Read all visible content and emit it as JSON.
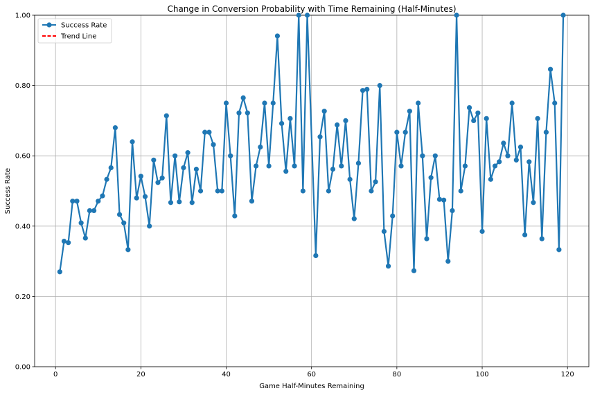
{
  "chart_data": {
    "type": "line",
    "title": "Change in Conversion Probability with Time Remaining (Half-Minutes)",
    "xlabel": "Game Half-Minutes Remaining",
    "ylabel": "Success Rate",
    "xlim": [
      -4.9,
      125
    ],
    "ylim": [
      0,
      1
    ],
    "xticks": [
      0,
      20,
      40,
      60,
      80,
      100,
      120
    ],
    "xtick_labels": [
      "0",
      "20",
      "40",
      "60",
      "80",
      "100",
      "120"
    ],
    "yticks": [
      0,
      0.2,
      0.4,
      0.6,
      0.8,
      1.0
    ],
    "ytick_labels": [
      "0.00",
      "0.20",
      "0.40",
      "0.60",
      "0.80",
      "1.00"
    ],
    "grid": true,
    "legend_position": "top-left",
    "series": [
      {
        "name": "Success Rate",
        "color": "#1f77b4",
        "marker": "circle",
        "x": [
          1,
          2,
          3,
          4,
          5,
          6,
          7,
          8,
          9,
          10,
          11,
          12,
          13,
          14,
          15,
          16,
          17,
          18,
          19,
          20,
          21,
          22,
          23,
          24,
          25,
          26,
          27,
          28,
          29,
          30,
          31,
          32,
          33,
          34,
          35,
          36,
          37,
          38,
          39,
          40,
          41,
          42,
          43,
          44,
          45,
          46,
          47,
          48,
          49,
          50,
          51,
          52,
          53,
          54,
          55,
          56,
          57,
          58,
          59,
          61,
          62,
          63,
          64,
          65,
          66,
          67,
          68,
          69,
          70,
          71,
          72,
          73,
          74,
          75,
          76,
          77,
          78,
          79,
          80,
          81,
          82,
          83,
          84,
          85,
          86,
          87,
          88,
          89,
          90,
          91,
          92,
          93,
          94,
          95,
          96,
          97,
          98,
          99,
          100,
          101,
          102,
          103,
          104,
          105,
          106,
          107,
          108,
          109,
          110,
          111,
          112,
          113,
          114,
          115,
          116,
          117,
          118,
          119
        ],
        "values": [
          0.27,
          0.357,
          0.353,
          0.471,
          0.471,
          0.409,
          0.366,
          0.444,
          0.444,
          0.471,
          0.486,
          0.533,
          0.566,
          0.68,
          0.433,
          0.409,
          0.333,
          0.64,
          0.48,
          0.542,
          0.484,
          0.4,
          0.588,
          0.524,
          0.537,
          0.714,
          0.467,
          0.6,
          0.469,
          0.566,
          0.609,
          0.467,
          0.562,
          0.5,
          0.667,
          0.667,
          0.632,
          0.5,
          0.5,
          0.75,
          0.6,
          0.429,
          0.722,
          0.765,
          0.722,
          0.471,
          0.571,
          0.625,
          0.75,
          0.571,
          0.75,
          0.941,
          0.692,
          0.556,
          0.706,
          0.571,
          1.0,
          0.5,
          1.0,
          0.316,
          0.654,
          0.727,
          0.5,
          0.562,
          0.688,
          0.571,
          0.7,
          0.533,
          0.421,
          0.579,
          0.786,
          0.789,
          0.5,
          0.526,
          0.8,
          0.385,
          0.286,
          0.429,
          0.667,
          0.571,
          0.667,
          0.727,
          0.273,
          0.75,
          0.6,
          0.364,
          0.538,
          0.6,
          0.476,
          0.474,
          0.3,
          0.444,
          1.0,
          0.5,
          0.571,
          0.737,
          0.7,
          0.722,
          0.385,
          0.706,
          0.533,
          0.571,
          0.583,
          0.636,
          0.6,
          0.75,
          0.588,
          0.625,
          0.375,
          0.583,
          0.467,
          0.706,
          0.364,
          0.667,
          0.846,
          0.75,
          0.333,
          1.0
        ]
      },
      {
        "name": "Trend Line",
        "color": "#ff0000",
        "style": "dashed"
      }
    ]
  }
}
